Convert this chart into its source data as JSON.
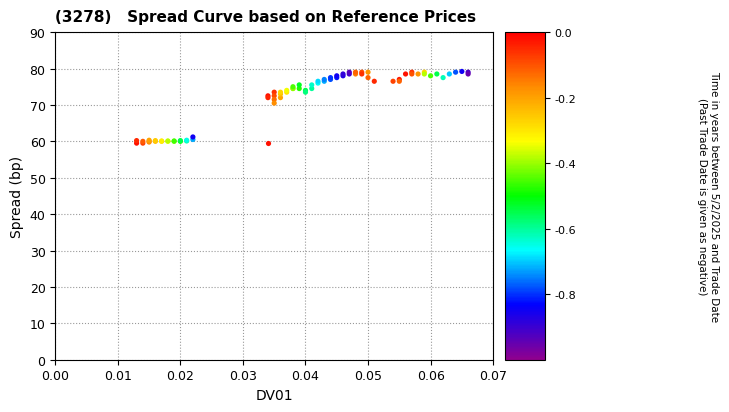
{
  "title": "(3278)   Spread Curve based on Reference Prices",
  "xlabel": "DV01",
  "ylabel": "Spread (bp)",
  "xlim": [
    0.0,
    0.07
  ],
  "ylim": [
    0,
    90
  ],
  "xticks": [
    0.0,
    0.01,
    0.02,
    0.03,
    0.04,
    0.05,
    0.06,
    0.07
  ],
  "yticks": [
    0,
    10,
    20,
    30,
    40,
    50,
    60,
    70,
    80,
    90
  ],
  "colorbar_label": "Time in years between 5/2/2025 and Trade Date\n(Past Trade Date is given as negative)",
  "cbar_min": -1.0,
  "cbar_max": 0.0,
  "cbar_ticks": [
    0.0,
    -0.2,
    -0.4,
    -0.6,
    -0.8
  ],
  "cluster1": {
    "x": [
      0.013,
      0.013,
      0.014,
      0.014,
      0.015,
      0.015,
      0.015,
      0.016,
      0.016,
      0.017,
      0.017,
      0.018,
      0.018,
      0.019,
      0.019,
      0.02,
      0.02,
      0.021,
      0.021,
      0.022,
      0.022
    ],
    "y": [
      59.5,
      60.2,
      59.5,
      60.0,
      59.8,
      60.0,
      60.3,
      60.0,
      60.2,
      60.0,
      60.1,
      60.0,
      60.1,
      60.0,
      60.1,
      60.0,
      60.2,
      60.1,
      60.3,
      60.5,
      61.2
    ],
    "c": [
      -0.02,
      -0.05,
      -0.08,
      -0.11,
      -0.16,
      -0.18,
      -0.2,
      -0.23,
      -0.26,
      -0.28,
      -0.31,
      -0.35,
      -0.38,
      -0.42,
      -0.46,
      -0.5,
      -0.55,
      -0.6,
      -0.65,
      -0.72,
      -0.85
    ]
  },
  "cluster2_outlier": {
    "x": [
      0.034
    ],
    "y": [
      59.5
    ],
    "c": [
      -0.02
    ]
  },
  "cluster3": {
    "x": [
      0.034,
      0.034,
      0.035,
      0.035,
      0.035,
      0.035,
      0.036,
      0.036,
      0.036,
      0.037,
      0.037,
      0.038,
      0.038,
      0.038,
      0.039,
      0.039,
      0.04,
      0.04,
      0.041,
      0.041,
      0.042,
      0.042,
      0.043,
      0.043,
      0.044,
      0.044,
      0.045,
      0.045,
      0.046,
      0.046,
      0.047,
      0.047,
      0.048,
      0.048,
      0.049,
      0.049,
      0.05,
      0.05,
      0.051
    ],
    "y": [
      72.5,
      72.0,
      73.5,
      72.5,
      71.5,
      70.5,
      72.0,
      73.0,
      73.5,
      73.5,
      74.0,
      74.5,
      74.5,
      75.0,
      74.5,
      75.5,
      74.0,
      73.5,
      74.5,
      75.5,
      76.0,
      76.5,
      76.5,
      77.0,
      77.0,
      77.5,
      77.5,
      78.0,
      78.0,
      78.5,
      78.5,
      79.0,
      78.5,
      79.0,
      79.0,
      78.5,
      79.0,
      77.5,
      76.5
    ],
    "c": [
      -0.02,
      -0.04,
      -0.06,
      -0.09,
      -0.13,
      -0.17,
      -0.2,
      -0.24,
      -0.27,
      -0.3,
      -0.34,
      -0.37,
      -0.41,
      -0.45,
      -0.48,
      -0.52,
      -0.55,
      -0.58,
      -0.6,
      -0.63,
      -0.66,
      -0.69,
      -0.72,
      -0.75,
      -0.78,
      -0.8,
      -0.82,
      -0.85,
      -0.87,
      -0.89,
      -0.91,
      -0.93,
      -0.15,
      -0.12,
      -0.09,
      -0.06,
      -0.18,
      -0.12,
      -0.05
    ]
  },
  "cluster4": {
    "x": [
      0.054,
      0.055,
      0.055,
      0.056,
      0.057,
      0.057,
      0.058,
      0.059,
      0.059,
      0.06,
      0.061,
      0.062,
      0.063,
      0.064,
      0.065,
      0.066,
      0.066
    ],
    "y": [
      76.5,
      77.0,
      76.5,
      78.5,
      79.0,
      78.5,
      78.5,
      79.0,
      78.5,
      78.0,
      78.5,
      77.5,
      78.5,
      79.0,
      79.2,
      79.0,
      78.5
    ],
    "c": [
      -0.08,
      -0.03,
      -0.12,
      -0.02,
      -0.06,
      -0.1,
      -0.18,
      -0.28,
      -0.38,
      -0.45,
      -0.55,
      -0.62,
      -0.7,
      -0.78,
      -0.85,
      -0.92,
      -0.95
    ]
  }
}
